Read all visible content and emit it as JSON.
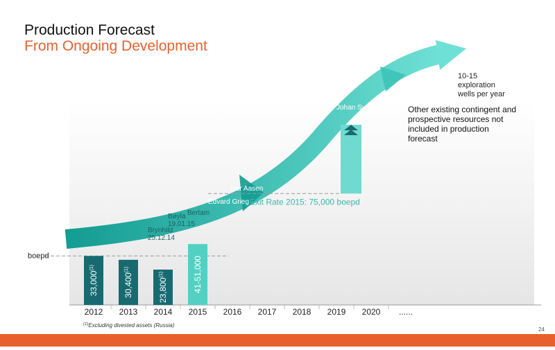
{
  "chart_data": {
    "type": "bar",
    "title": "Production Forecast",
    "subtitle": "From Ongoing Development",
    "y_label": "boepd",
    "categories": [
      "2012",
      "2013",
      "2014",
      "2015",
      "2016",
      "2017",
      "2018",
      "2019",
      "2020",
      "......"
    ],
    "values": [
      33000,
      30400,
      23800,
      41000,
      null,
      null,
      null,
      null,
      null,
      null
    ],
    "value_labels": [
      "33,000",
      "30,400",
      "23,800",
      "41-51,000",
      null,
      null,
      null,
      null,
      null,
      null
    ],
    "value_label_notes": [
      "(1)",
      "(1)",
      "(1)",
      null,
      null,
      null,
      null,
      null,
      null,
      null
    ],
    "colors": [
      "#176b70",
      "#176b70",
      "#176b70",
      "#52d1c3",
      null,
      null,
      null,
      null,
      null,
      null
    ],
    "ylim": [
      0,
      140000
    ],
    "exit_rate": {
      "value": 75000,
      "label": "Exit Rate 2015: 75,000 boepd",
      "color": "#3ab7ad"
    },
    "projects": [
      {
        "name": "Brynhild",
        "date": "25.12.14"
      },
      {
        "name": "Bøyla",
        "date": "19.01.15"
      },
      {
        "name": "Bertam"
      },
      {
        "name": "Edvard Grieg"
      },
      {
        "name": "Ivar Aasen"
      },
      {
        "name": "Johan Sverdrup"
      }
    ],
    "exploration_note": "10-15 exploration wells per year",
    "resources_note": "Other existing contingent and prospective resources not included in production forecast",
    "footnote_mark": "(1)",
    "footnote": "Excluding divested assets (Russia)"
  },
  "page_number": "24"
}
